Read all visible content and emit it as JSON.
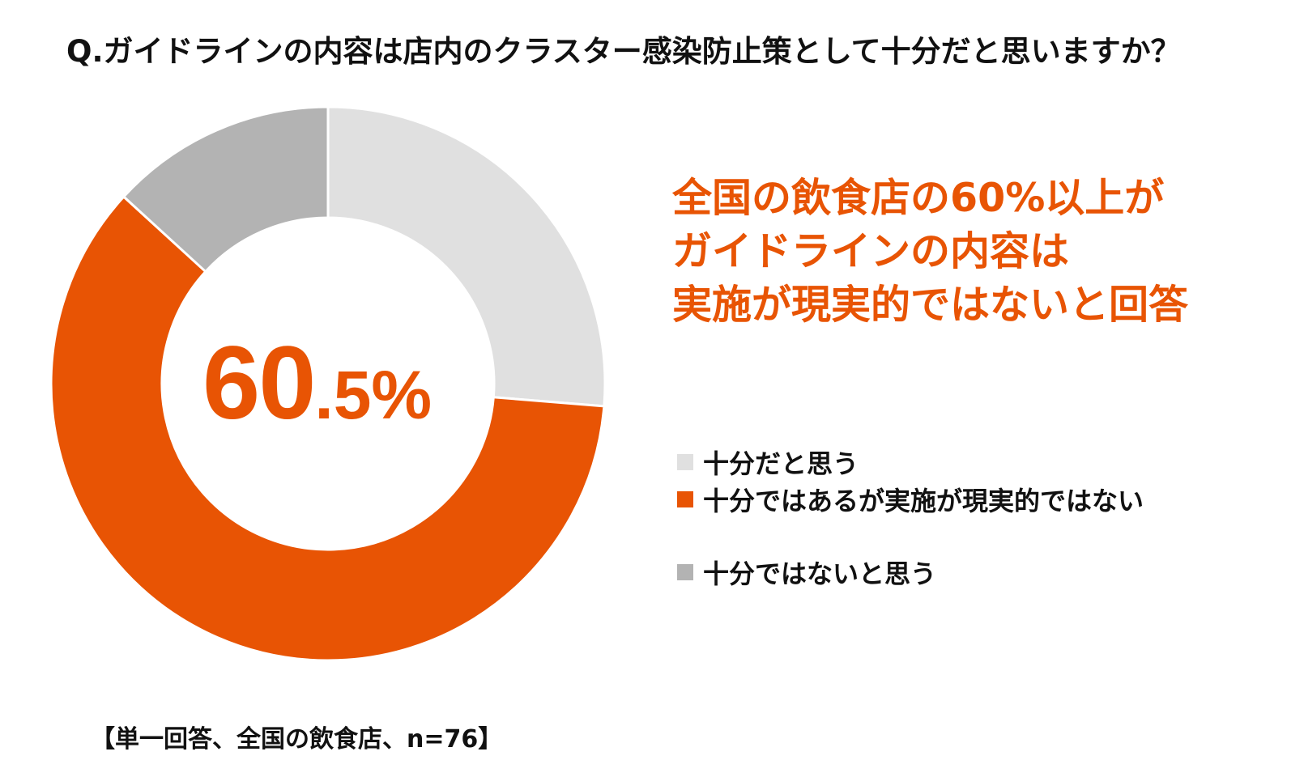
{
  "question": "Q.ガイドラインの内容は店内のクラスター感染防止策として十分だと思いますか？",
  "center_label": {
    "number": "60",
    "decimal": ".5%"
  },
  "headline": [
    "全国の飲食店の60%以上が",
    "ガイドラインの内容は",
    "実施が現実的ではないと回答"
  ],
  "footnote": "【単一回答、全国の飲食店、n=76】",
  "colors": {
    "accent": "#e85404",
    "light_gray": "#e0e0e0",
    "dark_gray": "#b3b3b3"
  },
  "chart_data": {
    "type": "pie",
    "variant": "donut",
    "direction": "clockwise-from-top",
    "series": [
      {
        "name": "十分だと思う",
        "value": 26.3,
        "color": "#e0e0e0"
      },
      {
        "name": "十分ではあるが実施が現実的ではない",
        "value": 60.5,
        "color": "#e85404"
      },
      {
        "name": "十分ではないと思う",
        "value": 13.2,
        "color": "#b3b3b3"
      }
    ],
    "legend_placement": "right"
  }
}
